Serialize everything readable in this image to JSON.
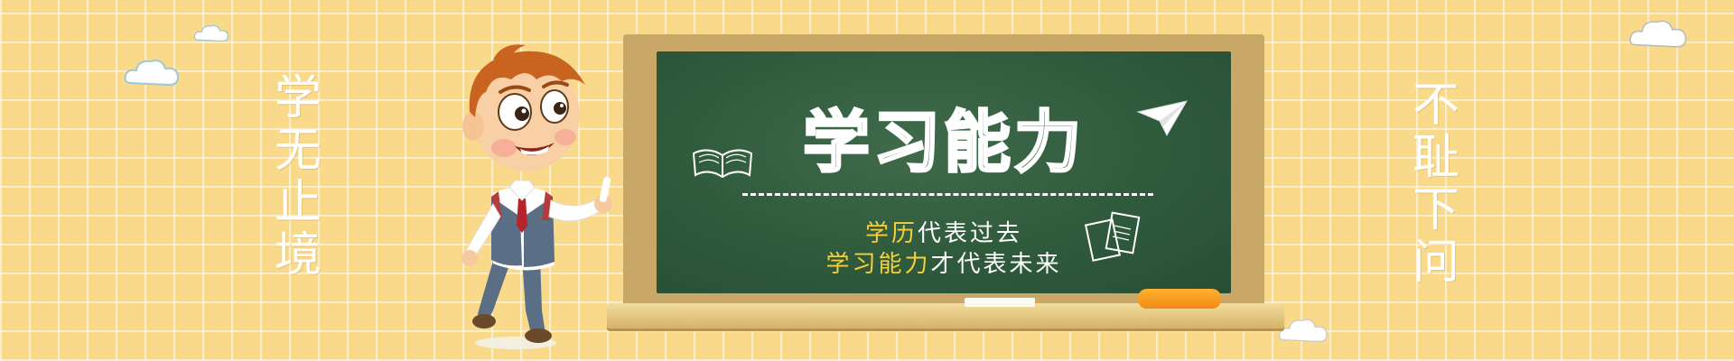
{
  "motto_left": "学无止境",
  "motto_right": "不耻下问",
  "board": {
    "title": "学习能力",
    "line1": {
      "highlight": "学历",
      "rest": "代表过去"
    },
    "line2": {
      "highlight": "学习能力",
      "rest": "才代表未来"
    }
  },
  "icons": {
    "book": "open-book-doodle-icon",
    "paper_plane": "paper-airplane-icon",
    "notebooks": "notebooks-doodle-icon",
    "cloud": "cloud-icon",
    "character": "cartoon-boy-with-chalk"
  },
  "colors": {
    "background": "#f9d98a",
    "board": "#2f5a3c",
    "frame": "#c9a867",
    "highlight": "#f7cf3d",
    "eraser": "#f08a17"
  }
}
